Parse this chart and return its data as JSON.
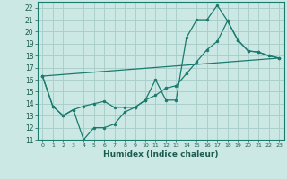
{
  "xlabel": "Humidex (Indice chaleur)",
  "bg_color": "#cce8e4",
  "grid_color": "#aacfcb",
  "line_color": "#1a7a6e",
  "xlim": [
    -0.5,
    23.5
  ],
  "ylim": [
    11,
    22.5
  ],
  "yticks": [
    11,
    12,
    13,
    14,
    15,
    16,
    17,
    18,
    19,
    20,
    21,
    22
  ],
  "xticks": [
    0,
    1,
    2,
    3,
    4,
    5,
    6,
    7,
    8,
    9,
    10,
    11,
    12,
    13,
    14,
    15,
    16,
    17,
    18,
    19,
    20,
    21,
    22,
    23
  ],
  "line1_x": [
    0,
    1,
    2,
    3,
    4,
    5,
    6,
    7,
    8,
    9,
    10,
    11,
    12,
    13,
    14,
    15,
    16,
    17,
    18,
    19,
    20,
    21,
    22,
    23
  ],
  "line1_y": [
    16.3,
    13.8,
    13.0,
    13.5,
    11.0,
    12.0,
    12.0,
    12.3,
    13.3,
    13.7,
    14.3,
    16.0,
    14.3,
    14.3,
    19.5,
    21.0,
    21.0,
    22.2,
    20.9,
    19.3,
    18.4,
    18.3,
    18.0,
    17.8
  ],
  "line2_x": [
    0,
    1,
    2,
    3,
    4,
    5,
    6,
    7,
    8,
    9,
    10,
    11,
    12,
    13,
    14,
    15,
    16,
    17,
    18,
    19,
    20,
    21,
    22,
    23
  ],
  "line2_y": [
    16.3,
    13.8,
    13.0,
    13.5,
    13.8,
    14.0,
    14.2,
    13.7,
    13.7,
    13.7,
    14.3,
    14.7,
    15.3,
    15.5,
    16.5,
    17.5,
    18.5,
    19.2,
    20.9,
    19.3,
    18.4,
    18.3,
    18.0,
    17.8
  ],
  "line3_x": [
    0,
    23
  ],
  "line3_y": [
    16.3,
    17.8
  ]
}
